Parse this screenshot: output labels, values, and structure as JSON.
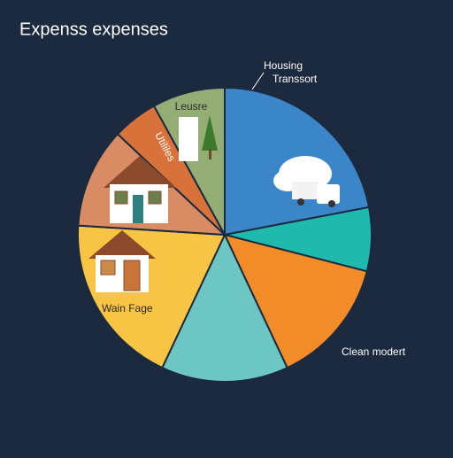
{
  "chart_data": {
    "type": "pie",
    "title": "Expenss expenses",
    "categories": [
      "Housing",
      "Transsort",
      "Clean modert",
      null,
      "Wain Fage",
      null,
      "Utililes",
      "Leusre"
    ],
    "values": [
      22,
      7,
      14,
      14,
      19,
      11,
      5,
      8
    ],
    "colors": [
      "#3b86c9",
      "#1fb9ad",
      "#f28c28",
      "#6cc7c4",
      "#f8c444",
      "#d98b63",
      "#d9713a",
      "#94ad75"
    ]
  }
}
